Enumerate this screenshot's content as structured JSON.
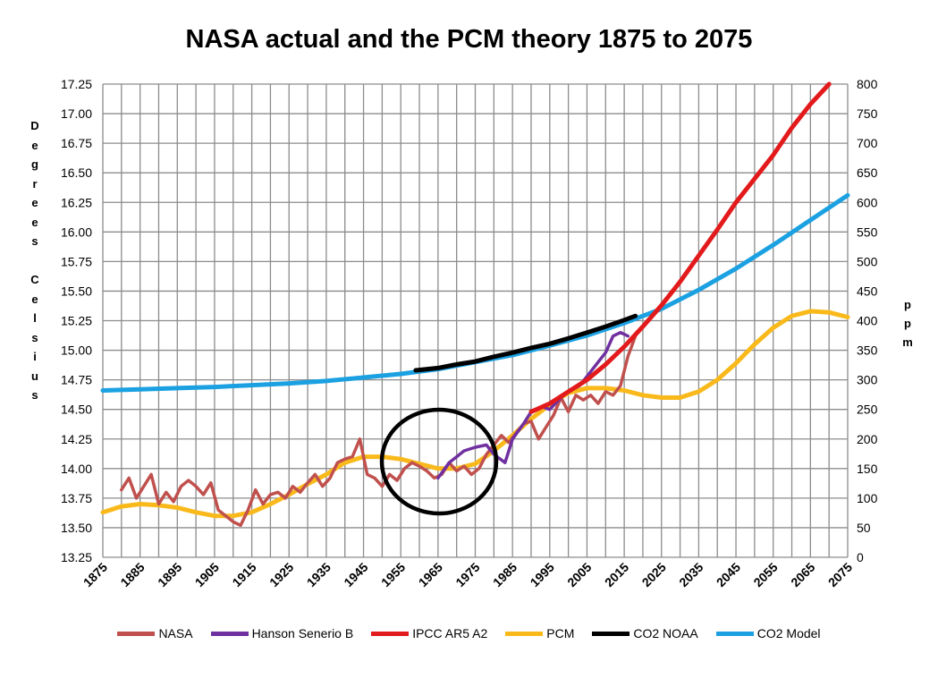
{
  "chart_data": {
    "type": "line",
    "title": "NASA actual and the PCM theory 1875 to 2075",
    "ylabel_left": "Degrees Celsius",
    "ylabel_right": "ppm",
    "xlim": [
      1875,
      2075
    ],
    "ylim_left": [
      13.25,
      17.25
    ],
    "ylim_right": [
      0,
      800
    ],
    "grid": true,
    "legend_position": "bottom",
    "x_ticks": [
      "1875",
      "1885",
      "1895",
      "1905",
      "1915",
      "1925",
      "1935",
      "1945",
      "1955",
      "1965",
      "1975",
      "1985",
      "1995",
      "2005",
      "2015",
      "2025",
      "2035",
      "2045",
      "2055",
      "2065",
      "2075"
    ],
    "y_ticks_left": [
      "13.25",
      "13.50",
      "13.75",
      "14.00",
      "14.25",
      "14.50",
      "14.75",
      "15.00",
      "15.25",
      "15.50",
      "15.75",
      "16.00",
      "16.25",
      "16.50",
      "16.75",
      "17.00",
      "17.25"
    ],
    "y_ticks_right": [
      "0",
      "50",
      "100",
      "150",
      "200",
      "250",
      "300",
      "350",
      "400",
      "450",
      "500",
      "550",
      "600",
      "650",
      "700",
      "750",
      "800"
    ],
    "series": [
      {
        "name": "NASA",
        "axis": "left",
        "color": "#c0504d",
        "x": [
          1880,
          1882,
          1884,
          1886,
          1888,
          1890,
          1892,
          1894,
          1896,
          1898,
          1900,
          1902,
          1904,
          1906,
          1908,
          1910,
          1912,
          1914,
          1916,
          1918,
          1920,
          1922,
          1924,
          1926,
          1928,
          1930,
          1932,
          1934,
          1936,
          1938,
          1940,
          1942,
          1944,
          1946,
          1948,
          1950,
          1952,
          1954,
          1956,
          1958,
          1960,
          1962,
          1964,
          1966,
          1968,
          1970,
          1972,
          1974,
          1976,
          1978,
          1980,
          1982,
          1984,
          1986,
          1988,
          1990,
          1992,
          1994,
          1996,
          1998,
          2000,
          2002,
          2004,
          2006,
          2008,
          2010,
          2012,
          2014,
          2016,
          2018
        ],
        "y": [
          13.82,
          13.92,
          13.75,
          13.85,
          13.95,
          13.7,
          13.8,
          13.72,
          13.85,
          13.9,
          13.85,
          13.78,
          13.88,
          13.65,
          13.6,
          13.55,
          13.52,
          13.65,
          13.82,
          13.7,
          13.78,
          13.8,
          13.75,
          13.85,
          13.8,
          13.88,
          13.95,
          13.85,
          13.92,
          14.05,
          14.08,
          14.1,
          14.25,
          13.95,
          13.92,
          13.85,
          13.95,
          13.9,
          14.0,
          14.05,
          14.02,
          13.98,
          13.92,
          13.95,
          14.05,
          13.98,
          14.02,
          13.95,
          14.0,
          14.12,
          14.2,
          14.28,
          14.22,
          14.3,
          14.38,
          14.4,
          14.25,
          14.35,
          14.45,
          14.6,
          14.48,
          14.62,
          14.58,
          14.62,
          14.55,
          14.65,
          14.62,
          14.7,
          14.95,
          15.12
        ]
      },
      {
        "name": "Hanson Senerio B",
        "axis": "left",
        "color": "#7030a0",
        "x": [
          1965,
          1968,
          1970,
          1972,
          1975,
          1978,
          1980,
          1983,
          1985,
          1988,
          1990,
          1993,
          1995,
          1998,
          2000,
          2003,
          2005,
          2008,
          2010,
          2012,
          2014,
          2016
        ],
        "y": [
          13.92,
          14.05,
          14.1,
          14.15,
          14.18,
          14.2,
          14.12,
          14.05,
          14.25,
          14.38,
          14.48,
          14.52,
          14.5,
          14.6,
          14.65,
          14.7,
          14.78,
          14.9,
          14.98,
          15.12,
          15.15,
          15.12
        ]
      },
      {
        "name": "IPCC AR5 A2",
        "axis": "left",
        "color": "#e31a1c",
        "x": [
          1990,
          1995,
          2000,
          2005,
          2010,
          2015,
          2020,
          2025,
          2030,
          2035,
          2040,
          2045,
          2050,
          2055,
          2060,
          2065,
          2070
        ],
        "y": [
          14.48,
          14.55,
          14.65,
          14.75,
          14.88,
          15.03,
          15.2,
          15.38,
          15.58,
          15.8,
          16.02,
          16.25,
          16.45,
          16.65,
          16.88,
          17.08,
          17.28
        ]
      },
      {
        "name": "PCM",
        "axis": "left",
        "color": "#f9b91b",
        "x": [
          1875,
          1880,
          1885,
          1890,
          1895,
          1900,
          1905,
          1910,
          1915,
          1920,
          1925,
          1930,
          1935,
          1940,
          1945,
          1950,
          1955,
          1960,
          1965,
          1970,
          1975,
          1980,
          1985,
          1990,
          1995,
          2000,
          2005,
          2010,
          2015,
          2020,
          2025,
          2030,
          2035,
          2040,
          2045,
          2050,
          2055,
          2060,
          2065,
          2070,
          2075
        ],
        "y": [
          13.63,
          13.68,
          13.7,
          13.69,
          13.67,
          13.63,
          13.6,
          13.6,
          13.63,
          13.7,
          13.78,
          13.87,
          13.95,
          14.05,
          14.1,
          14.1,
          14.08,
          14.04,
          14.0,
          14.0,
          14.04,
          14.15,
          14.28,
          14.42,
          14.54,
          14.64,
          14.68,
          14.68,
          14.66,
          14.62,
          14.6,
          14.6,
          14.65,
          14.75,
          14.89,
          15.05,
          15.19,
          15.29,
          15.33,
          15.32,
          15.28
        ]
      },
      {
        "name": "CO2 NOAA",
        "axis": "right",
        "color": "#000000",
        "x": [
          1959,
          1965,
          1970,
          1975,
          1980,
          1985,
          1990,
          1995,
          2000,
          2005,
          2010,
          2015,
          2018
        ],
        "y": [
          316,
          320,
          326,
          331,
          339,
          346,
          354,
          361,
          370,
          380,
          390,
          401,
          408
        ]
      },
      {
        "name": "CO2 Model",
        "axis": "right",
        "color": "#1ba1e2",
        "x": [
          1875,
          1885,
          1895,
          1905,
          1915,
          1925,
          1935,
          1945,
          1955,
          1965,
          1975,
          1985,
          1995,
          2005,
          2015,
          2025,
          2035,
          2045,
          2055,
          2065,
          2075
        ],
        "y": [
          282,
          284,
          286,
          288,
          291,
          294,
          298,
          304,
          310,
          318,
          330,
          342,
          358,
          375,
          396,
          420,
          452,
          488,
          528,
          570,
          612
        ]
      }
    ]
  }
}
